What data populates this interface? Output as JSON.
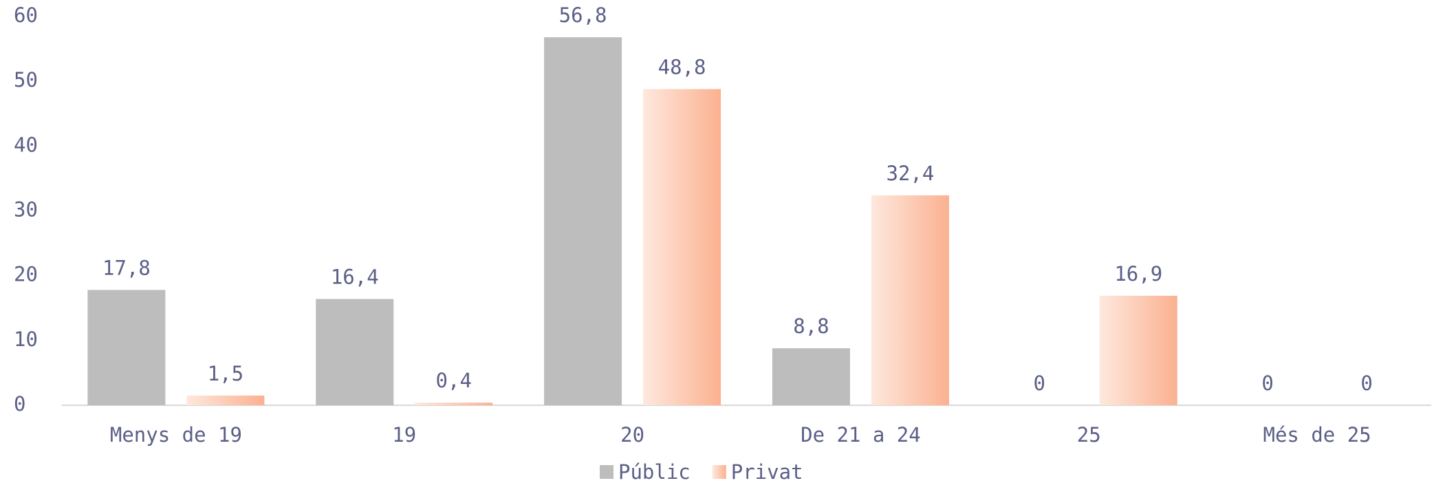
{
  "chart_data": {
    "type": "bar",
    "categories": [
      "Menys de 19",
      "19",
      "20",
      "De 21 a 24",
      "25",
      "Més de 25"
    ],
    "series": [
      {
        "name": "Públic",
        "color": "#bdbdbd",
        "values": [
          17.8,
          16.4,
          56.8,
          8.8,
          0,
          0
        ],
        "value_labels": [
          "17,8",
          "16,4",
          "56,8",
          "8,8",
          "0",
          "0"
        ]
      },
      {
        "name": "Privat",
        "color": "#fbb190",
        "values": [
          1.5,
          0.4,
          48.8,
          32.4,
          16.9,
          0
        ],
        "value_labels": [
          "1,5",
          "0,4",
          "48,8",
          "32,4",
          "16,9",
          "0"
        ]
      }
    ],
    "ylim": [
      0,
      60
    ],
    "yticks": [
      0,
      10,
      20,
      30,
      40,
      50,
      60
    ],
    "grid": false,
    "legend": "bottom"
  }
}
